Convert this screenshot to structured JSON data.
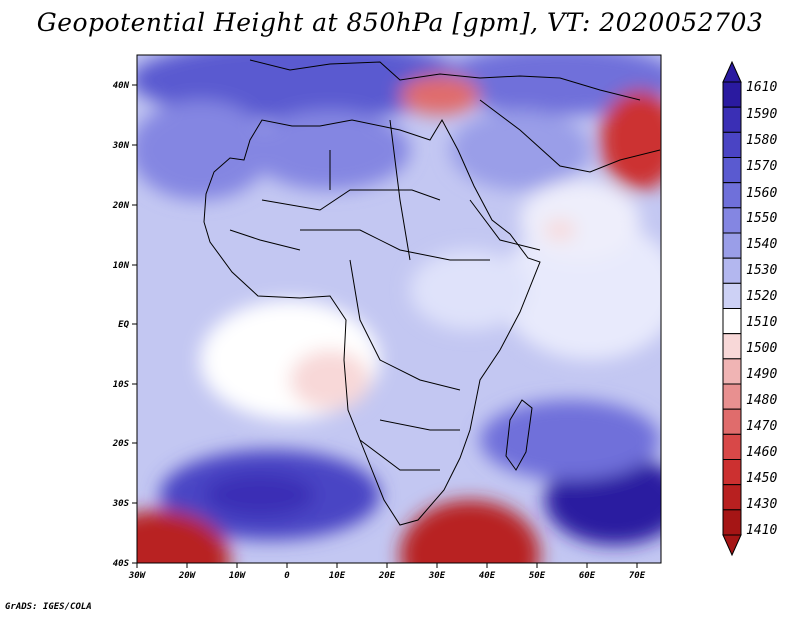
{
  "title": "Geopotential Height at 850hPa [gpm], VT: 2020052703",
  "footer": "GrADS: IGES/COLA",
  "axes": {
    "x_ticks": [
      "30W",
      "20W",
      "10W",
      "0",
      "10E",
      "20E",
      "30E",
      "40E",
      "50E",
      "60E",
      "70E"
    ],
    "y_ticks": [
      "40N",
      "30N",
      "20N",
      "10N",
      "EQ",
      "10S",
      "20S",
      "30S",
      "40S"
    ]
  },
  "colorbar": {
    "levels": [
      "1610",
      "1590",
      "1580",
      "1570",
      "1560",
      "1550",
      "1540",
      "1530",
      "1520",
      "1510",
      "1500",
      "1490",
      "1480",
      "1470",
      "1460",
      "1450",
      "1430",
      "1410"
    ],
    "colors": [
      "#2a1aa0",
      "#3a2fb5",
      "#4a44c4",
      "#5a5ad0",
      "#6f70da",
      "#8486e2",
      "#9a9ee8",
      "#b3b7ef",
      "#cdd1f5",
      "#ffffff",
      "#f8d8d8",
      "#f0b4b4",
      "#e89090",
      "#e06c6c",
      "#d84848",
      "#cc3030",
      "#b82020",
      "#a51515"
    ]
  },
  "chart_data": {
    "type": "heatmap",
    "title": "Geopotential Height at 850hPa [gpm], VT: 2020052703",
    "variable": "Geopotential Height at 850hPa",
    "units": "gpm",
    "valid_time": "2020052703",
    "x_range": [
      -30,
      75
    ],
    "y_range": [
      -40,
      45
    ],
    "levels": [
      1410,
      1430,
      1450,
      1460,
      1470,
      1480,
      1490,
      1500,
      1510,
      1520,
      1530,
      1540,
      1550,
      1560,
      1570,
      1580,
      1590,
      1610
    ]
  }
}
